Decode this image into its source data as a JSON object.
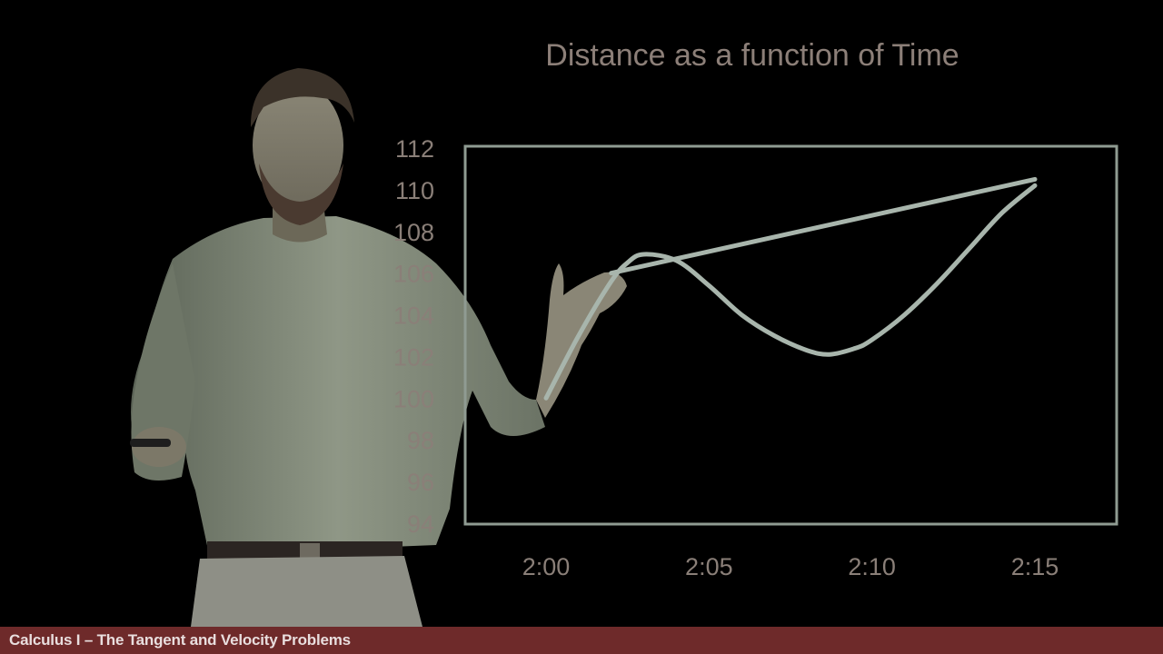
{
  "chart_data": {
    "type": "line",
    "title": "Distance as a function of Time",
    "xlabel": "",
    "ylabel": "",
    "x_ticks": [
      "2:00",
      "2:05",
      "2:10",
      "2:15"
    ],
    "x_tick_values": [
      0,
      5,
      10,
      15
    ],
    "y_ticks": [
      94,
      96,
      98,
      100,
      102,
      104,
      106,
      108,
      110,
      112
    ],
    "ylim": [
      94,
      112
    ],
    "xlim": [
      -1,
      17
    ],
    "grid": false,
    "series": [
      {
        "x": [
          0,
          1,
          2,
          2.5,
          3,
          4,
          5,
          6,
          7,
          8,
          8.7,
          9.5,
          10,
          11,
          12,
          13,
          14,
          15
        ],
        "values": [
          100,
          103,
          105.6,
          106.5,
          106.9,
          106.6,
          105.4,
          104,
          103,
          102.3,
          102.1,
          102.4,
          102.8,
          104,
          105.5,
          107.2,
          108.9,
          110.2
        ]
      },
      {
        "x": [
          2,
          15
        ],
        "values": [
          106,
          110.5
        ]
      }
    ],
    "colors": {
      "title": "#8c7f78",
      "ticks": "#8a7f78",
      "frame": "#8f9b92",
      "curve": "#a8b5ac",
      "secant": "#a8b5ac"
    }
  },
  "footer": {
    "title": "Calculus I – The Tangent and Velocity Problems",
    "background": "#6e2a2a"
  }
}
